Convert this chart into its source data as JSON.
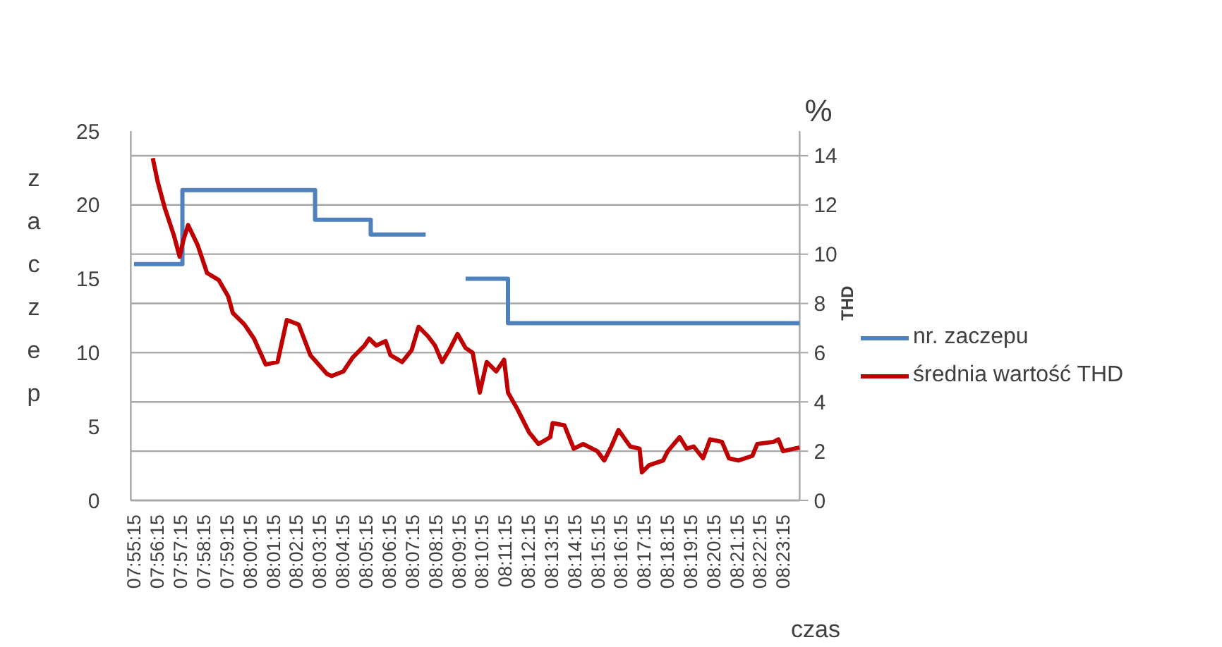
{
  "chart_data": {
    "type": "line",
    "ylabel": "zaczep",
    "y2label": "THD",
    "xlabel": "czas",
    "annotations": [
      "%"
    ],
    "xlim": [
      7.9185,
      8.3994
    ],
    "xticks": [
      {
        "value": 7.9208,
        "label": "07:55:15"
      },
      {
        "value": 7.9375,
        "label": "07:56:15"
      },
      {
        "value": 7.9542,
        "label": "07:57:15"
      },
      {
        "value": 7.9708,
        "label": "07:58:15"
      },
      {
        "value": 7.9875,
        "label": "07:59:15"
      },
      {
        "value": 8.0042,
        "label": "08:00:15"
      },
      {
        "value": 8.0208,
        "label": "08:01:15"
      },
      {
        "value": 8.0375,
        "label": "08:02:15"
      },
      {
        "value": 8.0542,
        "label": "08:03:15"
      },
      {
        "value": 8.0708,
        "label": "08:04:15"
      },
      {
        "value": 8.0875,
        "label": "08:05:15"
      },
      {
        "value": 8.1042,
        "label": "08:06:15"
      },
      {
        "value": 8.1208,
        "label": "08:07:15"
      },
      {
        "value": 8.1375,
        "label": "08:08:15"
      },
      {
        "value": 8.1542,
        "label": "08:09:15"
      },
      {
        "value": 8.1708,
        "label": "08:10:15"
      },
      {
        "value": 8.1875,
        "label": "08:11:15"
      },
      {
        "value": 8.2042,
        "label": "08:12:15"
      },
      {
        "value": 8.2208,
        "label": "08:13:15"
      },
      {
        "value": 8.2375,
        "label": "08:14:15"
      },
      {
        "value": 8.2542,
        "label": "08:15:15"
      },
      {
        "value": 8.2708,
        "label": "08:16:15"
      },
      {
        "value": 8.2875,
        "label": "08:17:15"
      },
      {
        "value": 8.3042,
        "label": "08:18:15"
      },
      {
        "value": 8.3208,
        "label": "08:19:15"
      },
      {
        "value": 8.3375,
        "label": "08:20:15"
      },
      {
        "value": 8.3542,
        "label": "08:21:15"
      },
      {
        "value": 8.3708,
        "label": "08:22:15"
      },
      {
        "value": 8.3875,
        "label": "08:23:15"
      }
    ],
    "ylim": [
      0,
      25
    ],
    "yticks": [
      0,
      5,
      10,
      15,
      20,
      25
    ],
    "y2lim": [
      0,
      15
    ],
    "y2ticks": [
      0,
      2,
      4,
      6,
      8,
      10,
      12,
      14
    ],
    "grid": "y",
    "legend": "right",
    "series": [
      {
        "name": "nr. zaczepu",
        "type": "step",
        "color": "#4f81bd",
        "x": [
          7.9208,
          7.9556,
          8.051,
          8.091,
          8.1305,
          8.145,
          8.1592,
          8.1897,
          8.3993
        ],
        "values": [
          16,
          21,
          19,
          18,
          18,
          null,
          15,
          12,
          12
        ]
      },
      {
        "name": "średnia wartość THD",
        "axis": "y2",
        "color": "#c00000",
        "x": [
          7.9343,
          7.9378,
          7.9428,
          7.9495,
          7.9536,
          7.9563,
          7.9597,
          7.9665,
          7.9733,
          7.9817,
          7.9885,
          7.9918,
          8.0003,
          8.0071,
          8.0155,
          8.024,
          8.0307,
          8.0392,
          8.0476,
          8.0595,
          8.0629,
          8.0713,
          8.0781,
          8.0865,
          8.0899,
          8.095,
          8.1017,
          8.1052,
          8.1136,
          8.1204,
          8.1254,
          8.1321,
          8.1372,
          8.1423,
          8.1474,
          8.1534,
          8.1592,
          8.1643,
          8.1694,
          8.1744,
          8.1812,
          8.1869,
          8.1897,
          8.1964,
          8.2049,
          8.2117,
          8.2201,
          8.2218,
          8.2302,
          8.237,
          8.2437,
          8.2539,
          8.2589,
          8.264,
          8.2691,
          8.2776,
          8.2843,
          8.286,
          8.2911,
          8.3012,
          8.3046,
          8.3131,
          8.3182,
          8.3232,
          8.3299,
          8.335,
          8.3435,
          8.3486,
          8.3553,
          8.3654,
          8.3689,
          8.3807,
          8.3841,
          8.3875,
          8.3993
        ],
        "values": [
          13.9,
          12.95,
          11.9,
          10.76,
          9.9,
          10.57,
          11.18,
          10.38,
          9.24,
          8.95,
          8.29,
          7.62,
          7.14,
          6.57,
          5.52,
          5.62,
          7.33,
          7.14,
          5.9,
          5.14,
          5.05,
          5.24,
          5.81,
          6.29,
          6.57,
          6.29,
          6.47,
          5.9,
          5.62,
          6.1,
          7.05,
          6.67,
          6.29,
          5.62,
          6.1,
          6.76,
          6.19,
          6.0,
          4.38,
          5.62,
          5.24,
          5.71,
          4.38,
          3.71,
          2.76,
          2.29,
          2.57,
          3.14,
          3.05,
          2.1,
          2.29,
          2.0,
          1.62,
          2.19,
          2.86,
          2.19,
          2.1,
          1.14,
          1.43,
          1.62,
          2.0,
          2.57,
          2.1,
          2.19,
          1.71,
          2.48,
          2.38,
          1.71,
          1.62,
          1.81,
          2.29,
          2.38,
          2.48,
          2.0,
          2.15
        ]
      }
    ]
  }
}
